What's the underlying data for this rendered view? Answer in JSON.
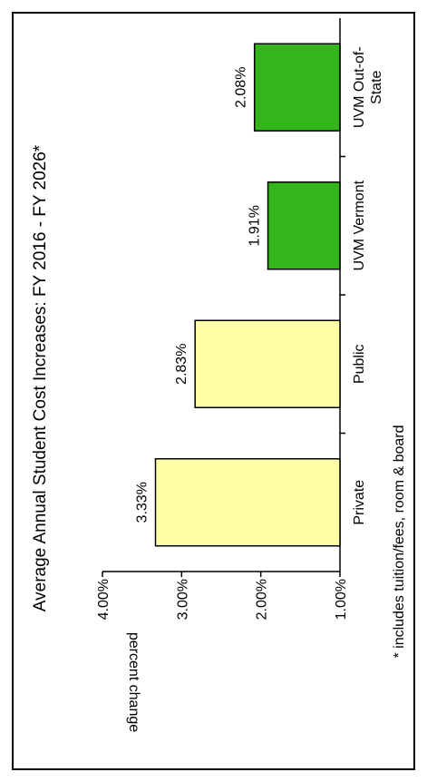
{
  "chart_data": {
    "type": "bar",
    "title": "Average Annual Student Cost Increases: FY 2016 - FY 2026*",
    "ylabel": "percent change",
    "xlabel": "",
    "footnote": "* includes tuition/fees, room & board",
    "ylim": [
      1.0,
      4.0
    ],
    "yticks": [
      "1.00%",
      "2.00%",
      "3.00%",
      "4.00%"
    ],
    "yticks_values": [
      1.0,
      2.0,
      3.0,
      4.0
    ],
    "categories": [
      "Private",
      "Public",
      "UVM Vermont",
      "UVM Out-of-State"
    ],
    "category_lines": [
      [
        "Private"
      ],
      [
        "Public"
      ],
      [
        "UVM Vermont"
      ],
      [
        "UVM Out-of-",
        "State"
      ]
    ],
    "values": [
      3.33,
      2.83,
      1.91,
      2.08
    ],
    "data_labels": [
      "3.33%",
      "2.83%",
      "1.91%",
      "2.08%"
    ],
    "colors": [
      "#ffffa8",
      "#ffffa8",
      "#33b51b",
      "#33b51b"
    ],
    "orientation": "rotated-90-ccw",
    "grid": false,
    "legend": "none"
  }
}
